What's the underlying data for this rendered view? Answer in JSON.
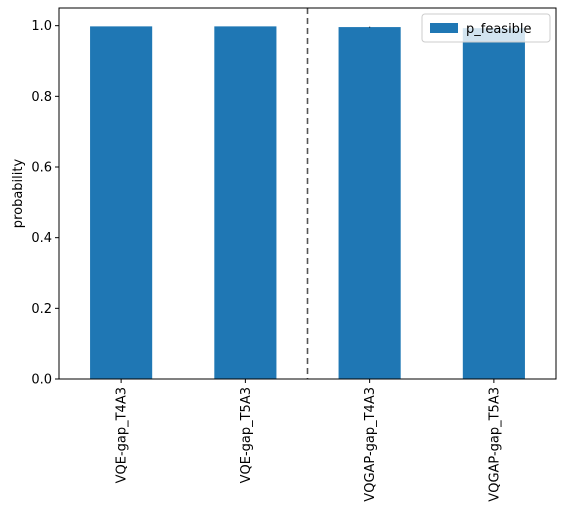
{
  "chart_data": {
    "type": "bar",
    "categories": [
      "VQE-gap_T4A3",
      "VQE-gap_T5A3",
      "VQGAP-gap_T4A3",
      "VQGAP-gap_T5A3"
    ],
    "series": [
      {
        "name": "p_feasible",
        "values": [
          0.998,
          0.998,
          0.996,
          0.993
        ],
        "error": [
          0,
          0,
          0.001,
          0
        ]
      }
    ],
    "title": "",
    "xlabel": "",
    "ylabel": "probability",
    "ylim": [
      0.0,
      1.05
    ],
    "yticks": [
      0.0,
      0.2,
      0.4,
      0.6,
      0.8,
      1.0
    ],
    "ytick_labels": [
      "0.0",
      "0.2",
      "0.4",
      "0.6",
      "0.8",
      "1.0"
    ],
    "separator_after_index": 1,
    "grid": false,
    "legend_position": "top-right",
    "colors": {
      "bar": "#1f77b4",
      "separator": "#555555",
      "axis": "#000000"
    }
  }
}
